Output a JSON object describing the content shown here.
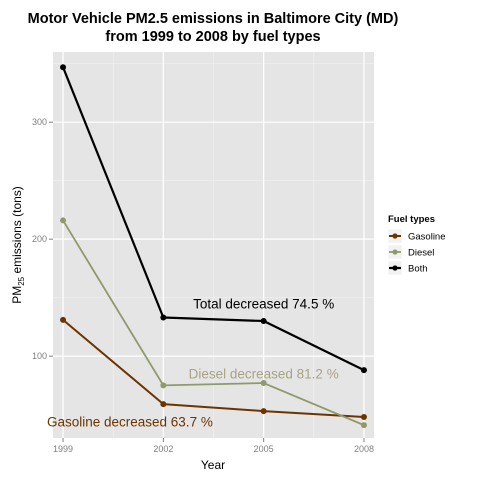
{
  "chart_data": {
    "type": "line",
    "title_lines": [
      "Motor Vehicle PM2.5 emissions in Baltimore City (MD)",
      "from 1999 to 2008 by fuel types"
    ],
    "xlabel": "Year",
    "ylabel": {
      "prefix": "PM",
      "sub": "25",
      "suffix": " emissions (tons)"
    },
    "x": [
      1999,
      2002,
      2005,
      2008
    ],
    "x_tick_labels": [
      "1999",
      "2002",
      "2005",
      "2008"
    ],
    "y_ticks": [
      100,
      200,
      300
    ],
    "xlim": [
      1998.7,
      2008.3
    ],
    "ylim": [
      30,
      360
    ],
    "grid": true,
    "series": [
      {
        "name": "Gasoline",
        "color": "#6b3500",
        "values": [
          131,
          59,
          53,
          48
        ],
        "width": 2
      },
      {
        "name": "Diesel",
        "color": "#8f9a6c",
        "values": [
          216,
          75,
          77,
          41
        ],
        "width": 1.8
      },
      {
        "name": "Both",
        "color": "#000000",
        "values": [
          347,
          133,
          130,
          88
        ],
        "width": 2.2
      }
    ],
    "annotations": [
      {
        "text": "Total decreased 74.5 %",
        "x": 2005,
        "y": 145,
        "color": "#000000"
      },
      {
        "text": "Diesel decreased 81.2 %",
        "x": 2005,
        "y": 85,
        "color": "#a8a382"
      },
      {
        "text": "Gasoline decreased 63.7 %",
        "x": 2001,
        "y": 44,
        "color": "#6b3500"
      }
    ],
    "legend": {
      "title": "Fuel types",
      "position": "right"
    }
  }
}
